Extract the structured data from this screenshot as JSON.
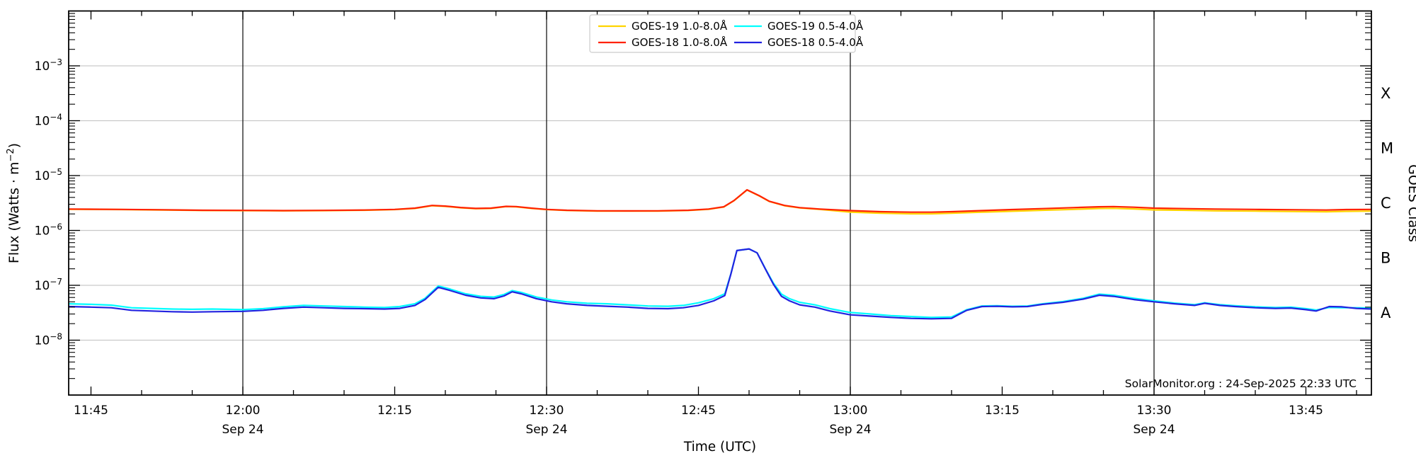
{
  "watermark": "SolarMonitor.org : 24-Sep-2025 22:33 UTC",
  "axes": {
    "xlabel": "Time (UTC)",
    "ylabel_parts": [
      "Flux (Watts · m",
      "−2",
      ")"
    ],
    "right_axis_label": "GOES Class",
    "x_domain_minutes_after_1100": [
      42.8,
      171.5
    ],
    "x_ticks": [
      {
        "m": 45,
        "label": "11:45"
      },
      {
        "m": 60,
        "label": "12:00",
        "sub": "Sep 24"
      },
      {
        "m": 75,
        "label": "12:15"
      },
      {
        "m": 90,
        "label": "12:30",
        "sub": "Sep 24"
      },
      {
        "m": 105,
        "label": "12:45"
      },
      {
        "m": 120,
        "label": "13:00",
        "sub": "Sep 24"
      },
      {
        "m": 135,
        "label": "13:15"
      },
      {
        "m": 150,
        "label": "13:30",
        "sub": "Sep 24"
      },
      {
        "m": 165,
        "label": "13:45"
      }
    ],
    "x_minor_step_minutes": 5,
    "y_labeled_exponents": [
      -3,
      -4,
      -5,
      -6,
      -7,
      -8
    ],
    "y_domain_exponents": [
      -9,
      -2
    ],
    "vertical_gridline_minutes": [
      60,
      90,
      120,
      150
    ],
    "goes_classes": [
      {
        "label": "X",
        "exp_center": -3.5
      },
      {
        "label": "M",
        "exp_center": -4.5
      },
      {
        "label": "C",
        "exp_center": -5.5
      },
      {
        "label": "B",
        "exp_center": -6.5
      },
      {
        "label": "A",
        "exp_center": -7.5
      }
    ]
  },
  "legend": {
    "entries": [
      {
        "label": "GOES-19 1.0-8.0Å",
        "color": "#FFD400"
      },
      {
        "label": "GOES-18 1.0-8.0Å",
        "color": "#FF2200"
      },
      {
        "label": "GOES-19 0.5-4.0Å",
        "color": "#00FFFF"
      },
      {
        "label": "GOES-18 0.5-4.0Å",
        "color": "#2222E0"
      }
    ]
  },
  "colors": {
    "grid_horizontal": "#c9c9c9",
    "grid_vertical": "#1a1a1a",
    "spine": "#000000",
    "background": "#ffffff"
  },
  "chart_data": {
    "type": "line",
    "title": "",
    "xlabel": "Time (UTC)",
    "ylabel": "Flux (Watts · m^-2)",
    "x_unit": "minutes after 11:00 UTC, Sep 24 2025",
    "y_scale": "log",
    "ylim": [
      1e-09,
      0.01
    ],
    "legend_position": "top-center",
    "series": [
      {
        "name": "GOES-19 1.0-8.0Å",
        "color": "#FFD400",
        "t": [
          42.8,
          48,
          52,
          56,
          60,
          64,
          68,
          72,
          75,
          77,
          78.7,
          80,
          81.5,
          83,
          84.5,
          86,
          87,
          88.5,
          90,
          92,
          95,
          98,
          101,
          104,
          106,
          107.5,
          108.5,
          109.8,
          111,
          112,
          113.5,
          115,
          117,
          120,
          123,
          126,
          128,
          130,
          133,
          136,
          139,
          142,
          144.5,
          146,
          148,
          150,
          153,
          156,
          160,
          164,
          167,
          169,
          171.5
        ],
        "flux": [
          2.43e-06,
          2.4e-06,
          2.36e-06,
          2.31e-06,
          2.3e-06,
          2.28e-06,
          2.3e-06,
          2.33e-06,
          2.4e-06,
          2.52e-06,
          2.82e-06,
          2.75e-06,
          2.59e-06,
          2.49e-06,
          2.52e-06,
          2.72e-06,
          2.69e-06,
          2.52e-06,
          2.4e-06,
          2.31e-06,
          2.26e-06,
          2.25e-06,
          2.26e-06,
          2.31e-06,
          2.43e-06,
          2.67e-06,
          3.47e-06,
          5.45e-06,
          4.26e-06,
          3.37e-06,
          2.82e-06,
          2.57e-06,
          2.42e-06,
          2.16e-06,
          2.06e-06,
          2.01e-06,
          2.01e-06,
          2.06e-06,
          2.15e-06,
          2.24e-06,
          2.33e-06,
          2.42e-06,
          2.51e-06,
          2.53e-06,
          2.47e-06,
          2.37e-06,
          2.33e-06,
          2.28e-06,
          2.25e-06,
          2.21e-06,
          2.19e-06,
          2.23e-06,
          2.25e-06
        ]
      },
      {
        "name": "GOES-18 1.0-8.0Å",
        "color": "#FF2200",
        "t": [
          42.8,
          48,
          52,
          56,
          60,
          64,
          68,
          72,
          75,
          77,
          78.7,
          80,
          81.5,
          83,
          84.5,
          86,
          87,
          88.5,
          90,
          92,
          95,
          98,
          101,
          104,
          106,
          107.5,
          108.5,
          109.8,
          111,
          112,
          113.5,
          115,
          117,
          120,
          123,
          126,
          128,
          130,
          133,
          136,
          139,
          142,
          144.5,
          146,
          148,
          150,
          153,
          156,
          160,
          164,
          167,
          169,
          171.5
        ],
        "flux": [
          2.45e-06,
          2.42e-06,
          2.38e-06,
          2.33e-06,
          2.32e-06,
          2.3e-06,
          2.32e-06,
          2.35e-06,
          2.42e-06,
          2.55e-06,
          2.85e-06,
          2.78e-06,
          2.62e-06,
          2.52e-06,
          2.55e-06,
          2.75e-06,
          2.72e-06,
          2.55e-06,
          2.42e-06,
          2.33e-06,
          2.28e-06,
          2.27e-06,
          2.28e-06,
          2.33e-06,
          2.45e-06,
          2.7e-06,
          3.5e-06,
          5.5e-06,
          4.3e-06,
          3.4e-06,
          2.85e-06,
          2.6e-06,
          2.45e-06,
          2.3e-06,
          2.2e-06,
          2.15e-06,
          2.15e-06,
          2.2e-06,
          2.3e-06,
          2.4e-06,
          2.5e-06,
          2.6e-06,
          2.7e-06,
          2.72e-06,
          2.65e-06,
          2.55e-06,
          2.5e-06,
          2.45e-06,
          2.42e-06,
          2.38e-06,
          2.35e-06,
          2.4e-06,
          2.42e-06
        ]
      },
      {
        "name": "GOES-19 0.5-4.0Å",
        "color": "#00FFFF",
        "t": [
          42.8,
          45,
          47,
          49,
          51,
          53,
          55,
          57,
          60,
          62,
          64,
          66,
          68,
          70,
          72,
          74,
          75.5,
          77,
          78,
          79.3,
          80.5,
          82,
          83.5,
          84.8,
          85.8,
          86.6,
          87.5,
          89,
          90.5,
          92,
          94,
          96,
          98,
          100,
          102,
          103.5,
          105,
          106.5,
          107.6,
          108.2,
          108.8,
          110,
          110.8,
          111.6,
          112.4,
          113.2,
          114,
          115,
          116.5,
          118,
          120,
          122,
          124,
          126,
          128,
          130,
          130.8,
          131.5,
          133,
          134.5,
          136,
          137.5,
          139,
          141,
          143,
          144.6,
          146,
          148,
          150,
          152,
          154,
          155,
          156.5,
          158,
          160,
          162,
          163.5,
          165,
          166,
          167.3,
          168.5,
          170,
          171.5
        ],
        "flux": [
          4.6e-08,
          4.5e-08,
          4.35e-08,
          3.9e-08,
          3.8e-08,
          3.7e-08,
          3.65e-08,
          3.7e-08,
          3.6e-08,
          3.75e-08,
          4.05e-08,
          4.3e-08,
          4.2e-08,
          4.1e-08,
          4e-08,
          3.95e-08,
          4.1e-08,
          4.6e-08,
          5.8e-08,
          9.7e-08,
          8.5e-08,
          7e-08,
          6.3e-08,
          6.1e-08,
          6.8e-08,
          8e-08,
          7.4e-08,
          6.1e-08,
          5.4e-08,
          5e-08,
          4.7e-08,
          4.6e-08,
          4.4e-08,
          4.2e-08,
          4.15e-08,
          4.3e-08,
          4.8e-08,
          5.7e-08,
          7e-08,
          1.62e-07,
          4.3e-07,
          4.6e-07,
          3.9e-07,
          2.02e-07,
          1.1e-07,
          6.9e-08,
          5.7e-08,
          4.9e-08,
          4.4e-08,
          3.75e-08,
          3.2e-08,
          3e-08,
          2.8e-08,
          2.7e-08,
          2.6e-08,
          2.65e-08,
          3.1e-08,
          3.6e-08,
          4.2e-08,
          4.25e-08,
          4.15e-08,
          4.2e-08,
          4.6e-08,
          5.05e-08,
          5.8e-08,
          6.9e-08,
          6.6e-08,
          5.8e-08,
          5.2e-08,
          4.75e-08,
          4.45e-08,
          4.8e-08,
          4.45e-08,
          4.25e-08,
          4.05e-08,
          3.95e-08,
          4e-08,
          3.75e-08,
          3.55e-08,
          3.95e-08,
          3.9e-08,
          3.9e-08,
          3.85e-08
        ]
      },
      {
        "name": "GOES-18 0.5-4.0Å",
        "color": "#2222E0",
        "t": [
          42.8,
          45,
          47,
          49,
          51,
          53,
          55,
          57,
          60,
          62,
          64,
          66,
          68,
          70,
          72,
          74,
          75.5,
          77,
          78,
          79.3,
          80.5,
          82,
          83.5,
          84.8,
          85.8,
          86.6,
          87.5,
          89,
          90.5,
          92,
          94,
          96,
          98,
          100,
          102,
          103.5,
          105,
          106.5,
          107.6,
          108.2,
          108.8,
          110,
          110.8,
          111.6,
          112.4,
          113.2,
          114,
          115,
          116.5,
          118,
          120,
          122,
          124,
          126,
          128,
          130,
          130.8,
          131.5,
          133,
          134.5,
          136,
          137.5,
          139,
          141,
          143,
          144.6,
          146,
          148,
          150,
          152,
          154,
          155,
          156.5,
          158,
          160,
          162,
          163.5,
          165,
          166,
          167.3,
          168.5,
          170,
          171.5
        ],
        "flux": [
          4.1e-08,
          4e-08,
          3.9e-08,
          3.5e-08,
          3.4e-08,
          3.3e-08,
          3.25e-08,
          3.3e-08,
          3.35e-08,
          3.5e-08,
          3.8e-08,
          4e-08,
          3.9e-08,
          3.8e-08,
          3.75e-08,
          3.7e-08,
          3.8e-08,
          4.3e-08,
          5.5e-08,
          9.2e-08,
          8e-08,
          6.6e-08,
          5.9e-08,
          5.7e-08,
          6.4e-08,
          7.6e-08,
          7e-08,
          5.7e-08,
          5e-08,
          4.6e-08,
          4.3e-08,
          4.15e-08,
          4e-08,
          3.8e-08,
          3.75e-08,
          3.9e-08,
          4.3e-08,
          5.2e-08,
          6.5e-08,
          1.6e-07,
          4.3e-07,
          4.6e-07,
          3.9e-07,
          2e-07,
          1.05e-07,
          6.3e-08,
          5.2e-08,
          4.4e-08,
          4e-08,
          3.4e-08,
          2.9e-08,
          2.75e-08,
          2.6e-08,
          2.5e-08,
          2.45e-08,
          2.5e-08,
          3e-08,
          3.5e-08,
          4.1e-08,
          4.15e-08,
          4.05e-08,
          4.1e-08,
          4.5e-08,
          4.9e-08,
          5.6e-08,
          6.6e-08,
          6.3e-08,
          5.5e-08,
          5e-08,
          4.6e-08,
          4.3e-08,
          4.7e-08,
          4.3e-08,
          4.1e-08,
          3.9e-08,
          3.8e-08,
          3.85e-08,
          3.6e-08,
          3.4e-08,
          4.1e-08,
          4.05e-08,
          3.8e-08,
          3.7e-08
        ]
      }
    ]
  }
}
